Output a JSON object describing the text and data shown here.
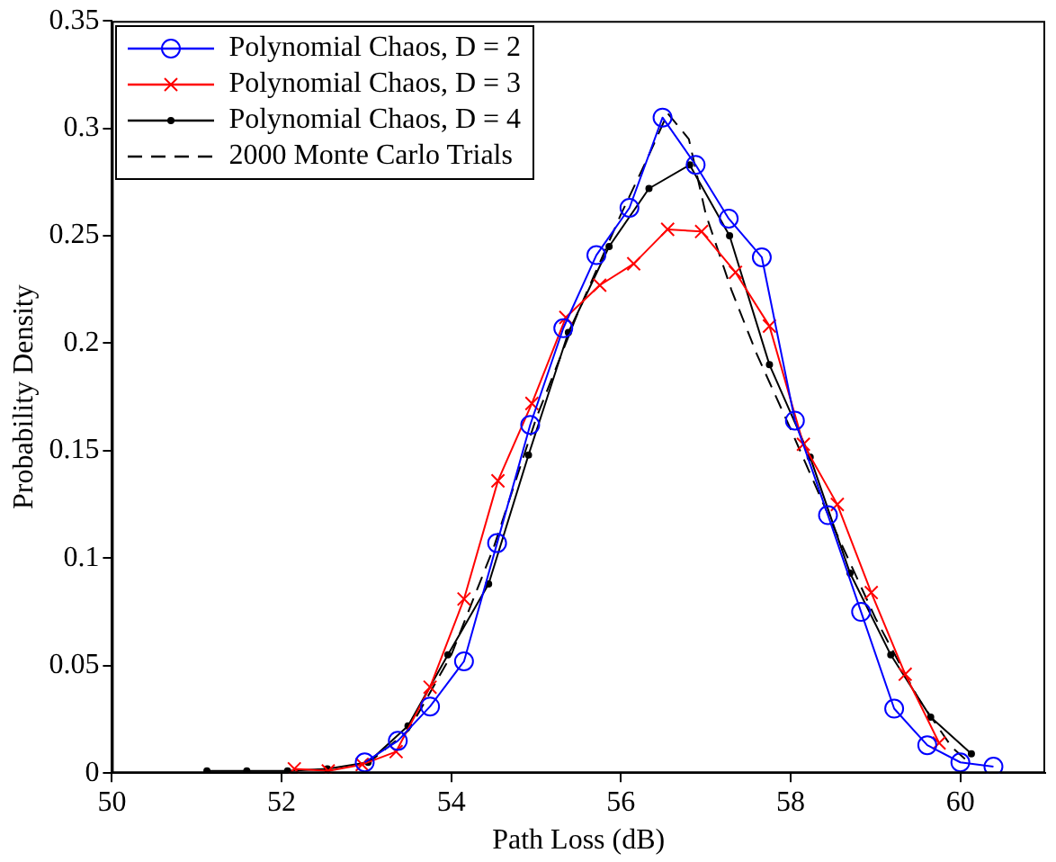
{
  "chart_data": {
    "type": "line",
    "xlabel": "Path Loss (dB)",
    "ylabel": "Probability Density",
    "xlim": [
      50,
      61
    ],
    "xticks": [
      50,
      52,
      54,
      56,
      58,
      60
    ],
    "ylim": [
      0,
      0.35
    ],
    "yticks": [
      0,
      0.05,
      0.1,
      0.15,
      0.2,
      0.25,
      0.3,
      0.35
    ],
    "grid": false,
    "legend": "top left",
    "series": [
      {
        "name": "Polynomial Chaos, D = 2",
        "color": "#0000ff",
        "marker": "circle",
        "line_style": "solid",
        "x": [
          52.98,
          53.37,
          53.75,
          54.15,
          54.54,
          54.93,
          55.32,
          55.71,
          56.1,
          56.49,
          56.88,
          57.27,
          57.66,
          58.05,
          58.44,
          58.83,
          59.22,
          59.61,
          60.0,
          60.39
        ],
        "values": [
          0.005,
          0.015,
          0.031,
          0.052,
          0.107,
          0.162,
          0.207,
          0.241,
          0.263,
          0.305,
          0.283,
          0.258,
          0.24,
          0.164,
          0.12,
          0.075,
          0.03,
          0.013,
          0.005,
          0.003
        ]
      },
      {
        "name": "Polynomial Chaos, D = 3",
        "color": "#ff0000",
        "marker": "cross",
        "line_style": "solid",
        "x": [
          52.15,
          52.55,
          52.95,
          53.35,
          53.75,
          54.15,
          54.55,
          54.95,
          55.35,
          55.75,
          56.15,
          56.55,
          56.95,
          57.35,
          57.75,
          58.15,
          58.55,
          58.95,
          59.35,
          59.75
        ],
        "values": [
          0.002,
          0.001,
          0.004,
          0.01,
          0.04,
          0.081,
          0.136,
          0.172,
          0.212,
          0.227,
          0.237,
          0.253,
          0.252,
          0.233,
          0.208,
          0.153,
          0.125,
          0.084,
          0.046,
          0.014
        ]
      },
      {
        "name": "Polynomial Chaos, D = 4",
        "color": "#000000",
        "marker": "circle",
        "line_style": "solid",
        "x": [
          51.12,
          51.59,
          52.07,
          52.54,
          53.02,
          53.49,
          53.96,
          54.44,
          54.91,
          55.38,
          55.86,
          56.33,
          56.81,
          57.28,
          57.75,
          58.23,
          58.7,
          59.18,
          59.65,
          60.13
        ],
        "values": [
          0.001,
          0.001,
          0.001,
          0.002,
          0.005,
          0.022,
          0.055,
          0.088,
          0.148,
          0.205,
          0.245,
          0.272,
          0.283,
          0.25,
          0.19,
          0.147,
          0.093,
          0.055,
          0.026,
          0.009
        ]
      },
      {
        "name": "2000 Monte Carlo Trials",
        "color": "#000000",
        "marker": "none",
        "line_style": "dashed",
        "x": [
          53.0,
          53.5,
          54.0,
          54.5,
          55.0,
          55.5,
          56.0,
          56.3,
          56.55,
          56.8,
          57.0,
          57.3,
          57.6,
          58.0,
          58.5,
          59.0,
          59.5,
          59.9,
          60.1
        ],
        "values": [
          0.004,
          0.02,
          0.055,
          0.105,
          0.165,
          0.215,
          0.26,
          0.285,
          0.307,
          0.295,
          0.26,
          0.225,
          0.195,
          0.16,
          0.115,
          0.072,
          0.035,
          0.012,
          0.005
        ]
      }
    ]
  }
}
